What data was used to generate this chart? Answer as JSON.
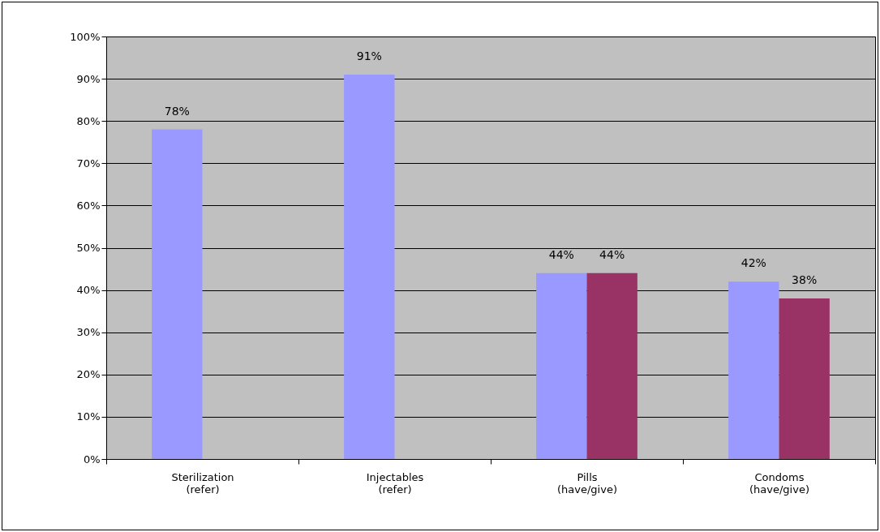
{
  "chart_data": {
    "type": "bar",
    "categories": [
      "Sterilization\n(refer)",
      "Injectables\n(refer)",
      "Pills\n(have/give)",
      "Condoms\n(have/give)"
    ],
    "series": [
      {
        "color": "#9999ff",
        "values": [
          78,
          91,
          44,
          42
        ],
        "value_labels": [
          "78%",
          "91%",
          "44%",
          "42%"
        ]
      },
      {
        "color": "#993366",
        "values": [
          null,
          null,
          44,
          38
        ],
        "value_labels": [
          null,
          null,
          "44%",
          "38%"
        ]
      }
    ],
    "ylim": [
      0,
      100
    ],
    "yticks": [
      {
        "value": 0,
        "label": "0%"
      },
      {
        "value": 10,
        "label": "10%"
      },
      {
        "value": 20,
        "label": "20%"
      },
      {
        "value": 30,
        "label": "30%"
      },
      {
        "value": 40,
        "label": "40%"
      },
      {
        "value": 50,
        "label": "50%"
      },
      {
        "value": 60,
        "label": "60%"
      },
      {
        "value": 70,
        "label": "70%"
      },
      {
        "value": 80,
        "label": "80%"
      },
      {
        "value": 90,
        "label": "90%"
      },
      {
        "value": 100,
        "label": "100%"
      }
    ],
    "grid": "y",
    "legend": false
  }
}
